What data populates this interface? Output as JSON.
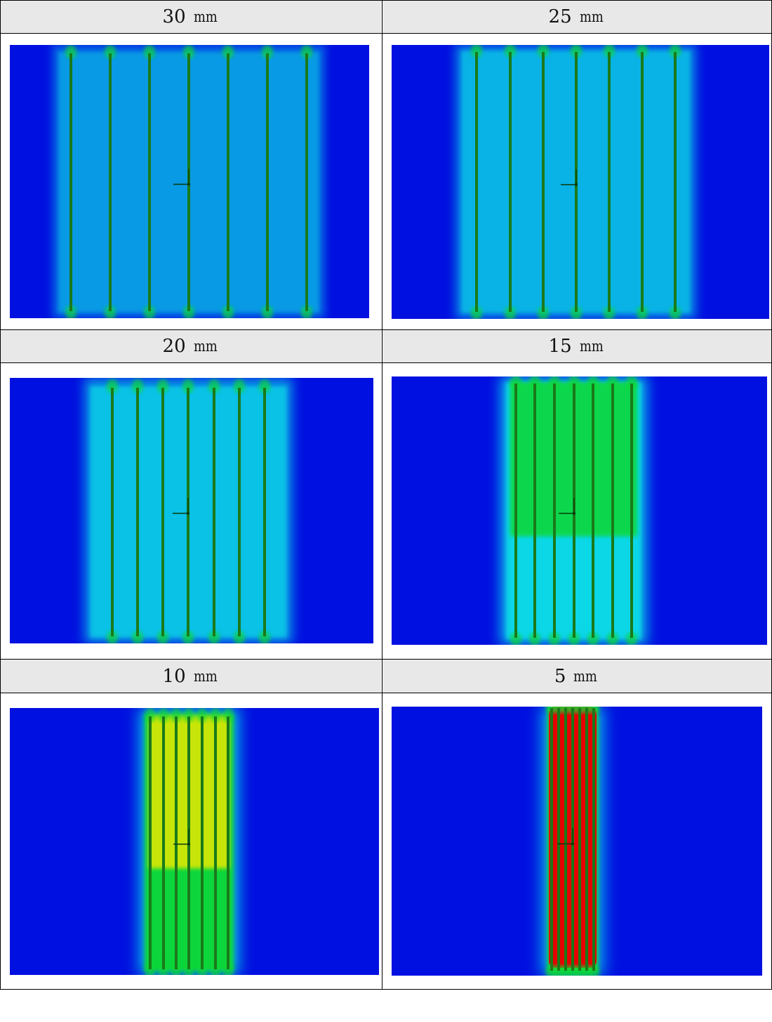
{
  "panels": [
    {
      "spacing": "30",
      "unit": "mm"
    },
    {
      "spacing": "25",
      "unit": "mm"
    },
    {
      "spacing": "20",
      "unit": "mm"
    },
    {
      "spacing": "15",
      "unit": "mm"
    },
    {
      "spacing": "10",
      "unit": "mm"
    },
    {
      "spacing": "5",
      "unit": "mm"
    }
  ],
  "colors": {
    "background_field": "#0010e0",
    "cyan": "#10e8e8",
    "green": "#10d830",
    "yellow": "#e8e800",
    "red": "#e80000",
    "electrode": "#1a7a1a",
    "header_bg": "#e8e8e8"
  }
}
